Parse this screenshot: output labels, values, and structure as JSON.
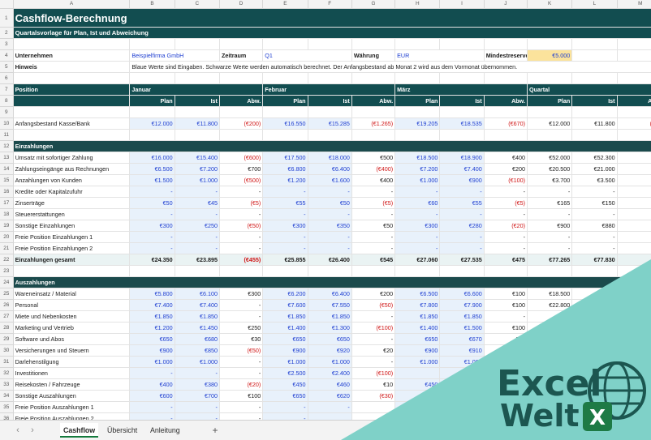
{
  "columns": [
    "A",
    "B",
    "C",
    "D",
    "E",
    "F",
    "G",
    "H",
    "I",
    "J",
    "K",
    "L",
    "M"
  ],
  "title": "Cashflow-Berechnung",
  "subtitle": "Quartalsvorlage für Plan, Ist und Abweichung",
  "info": {
    "company_label": "Unternehmen",
    "company_value": "Beispielfirma GmbH",
    "period_label": "Zeitraum",
    "period_value": "Q1",
    "currency_label": "Währung",
    "currency_value": "EUR",
    "reserve_label": "Mindestreserve",
    "reserve_value": "€5.000",
    "hint_label": "Hinweis",
    "hint_text": "Blaue Werte sind Eingaben. Schwarze Werte werden automatisch berechnet. Der Anfangsbestand ab Monat 2 wird aus dem Vormonat übernommen."
  },
  "header": {
    "position": "Position",
    "months": [
      "Januar",
      "Februar",
      "März",
      "Quartal"
    ],
    "sub": [
      "Plan",
      "Ist",
      "Abw."
    ]
  },
  "opening": {
    "label": "Anfangsbestand Kasse/Bank",
    "v": [
      "€12.000",
      "€11.800",
      "(€200)",
      "€16.550",
      "€15.285",
      "(€1.265)",
      "€19.205",
      "€18.535",
      "(€670)",
      "€12.000",
      "€11.800",
      "(€20"
    ]
  },
  "income_title": "Einzahlungen",
  "income": [
    {
      "label": "Umsatz mit sofortiger Zahlung",
      "v": [
        "€16.000",
        "€15.400",
        "(€600)",
        "€17.500",
        "€18.000",
        "€500",
        "€18.500",
        "€18.900",
        "€400",
        "€52.000",
        "€52.300",
        "€3"
      ]
    },
    {
      "label": "Zahlungseingänge aus Rechnungen",
      "v": [
        "€6.500",
        "€7.200",
        "€700",
        "€6.800",
        "€6.400",
        "(€400)",
        "€7.200",
        "€7.400",
        "€200",
        "€20.500",
        "€21.000",
        "€5"
      ]
    },
    {
      "label": "Anzahlungen von Kunden",
      "v": [
        "€1.500",
        "€1.000",
        "(€500)",
        "€1.200",
        "€1.600",
        "€400",
        "€1.000",
        "€900",
        "(€100)",
        "€3.700",
        "€3.500",
        "(€2"
      ]
    },
    {
      "label": "Kredite oder Kapitalzufuhr",
      "v": [
        "-",
        "-",
        "-",
        "-",
        "-",
        "-",
        "-",
        "-",
        "-",
        "-",
        "-",
        "-"
      ]
    },
    {
      "label": "Zinserträge",
      "v": [
        "€50",
        "€45",
        "(€5)",
        "€55",
        "€50",
        "(€5)",
        "€60",
        "€55",
        "(€5)",
        "€165",
        "€150",
        "(€1"
      ]
    },
    {
      "label": "Steuererstattungen",
      "v": [
        "-",
        "-",
        "-",
        "-",
        "-",
        "-",
        "-",
        "-",
        "-",
        "-",
        "-",
        "-"
      ]
    },
    {
      "label": "Sonstige Einzahlungen",
      "v": [
        "€300",
        "€250",
        "(€50)",
        "€300",
        "€350",
        "€50",
        "€300",
        "€280",
        "(€20)",
        "€900",
        "€880",
        "(€"
      ]
    },
    {
      "label": "Freie Position Einzahlungen 1",
      "v": [
        "-",
        "-",
        "-",
        "-",
        "-",
        "-",
        "-",
        "-",
        "-",
        "-",
        "-",
        "-"
      ]
    },
    {
      "label": "Freie Position Einzahlungen 2",
      "v": [
        "-",
        "-",
        "-",
        "-",
        "-",
        "-",
        "-",
        "-",
        "-",
        "-",
        "-",
        "-"
      ]
    }
  ],
  "income_total": {
    "label": "Einzahlungen gesamt",
    "v": [
      "€24.350",
      "€23.895",
      "(€455)",
      "€25.855",
      "€26.400",
      "€545",
      "€27.060",
      "€27.535",
      "€475",
      "€77.265",
      "€77.830",
      ""
    ]
  },
  "expense_title": "Auszahlungen",
  "expenses": [
    {
      "label": "Wareneinsatz / Material",
      "v": [
        "€5.800",
        "€6.100",
        "€300",
        "€6.200",
        "€6.400",
        "€200",
        "€6.500",
        "€6.600",
        "€100",
        "€18.500",
        "",
        ""
      ]
    },
    {
      "label": "Personal",
      "v": [
        "€7.400",
        "€7.400",
        "-",
        "€7.600",
        "€7.550",
        "(€50)",
        "€7.800",
        "€7.900",
        "€100",
        "€22.800",
        "",
        ""
      ]
    },
    {
      "label": "Miete und Nebenkosten",
      "v": [
        "€1.850",
        "€1.850",
        "-",
        "€1.850",
        "€1.850",
        "-",
        "€1.850",
        "€1.850",
        "-",
        "€5.5",
        "",
        ""
      ]
    },
    {
      "label": "Marketing und Vertrieb",
      "v": [
        "€1.200",
        "€1.450",
        "€250",
        "€1.400",
        "€1.300",
        "(€100)",
        "€1.400",
        "€1.500",
        "€100",
        "",
        "",
        ""
      ]
    },
    {
      "label": "Software und Abos",
      "v": [
        "€650",
        "€680",
        "€30",
        "€650",
        "€650",
        "-",
        "€650",
        "€670",
        "€20",
        "",
        "",
        ""
      ]
    },
    {
      "label": "Versicherungen und Steuern",
      "v": [
        "€900",
        "€850",
        "(€50)",
        "€900",
        "€920",
        "€20",
        "€900",
        "€910",
        "",
        "",
        "",
        ""
      ]
    },
    {
      "label": "Darlehenstilgung",
      "v": [
        "€1.000",
        "€1.000",
        "-",
        "€1.000",
        "€1.000",
        "-",
        "€1.000",
        "€1.000",
        "",
        "",
        "",
        ""
      ]
    },
    {
      "label": "Investitionen",
      "v": [
        "-",
        "-",
        "-",
        "€2.500",
        "€2.400",
        "(€100)",
        "",
        "",
        "",
        "",
        "",
        ""
      ]
    },
    {
      "label": "Reisekosten / Fahrzeuge",
      "v": [
        "€400",
        "€380",
        "(€20)",
        "€450",
        "€460",
        "€10",
        "€450",
        "",
        "",
        "",
        "",
        ""
      ]
    },
    {
      "label": "Sonstige Auszahlungen",
      "v": [
        "€600",
        "€700",
        "€100",
        "€650",
        "€620",
        "(€30)",
        "",
        "",
        "",
        "",
        "",
        ""
      ]
    },
    {
      "label": "Freie Position Auszahlungen 1",
      "v": [
        "-",
        "-",
        "-",
        "-",
        "-",
        "",
        "",
        "",
        "",
        "",
        "",
        ""
      ]
    },
    {
      "label": "Freie Position Auszahlungen 2",
      "v": [
        "-",
        "-",
        "-",
        "-",
        "",
        "",
        "",
        "",
        "",
        "",
        "",
        ""
      ]
    }
  ],
  "tabs": [
    "Cashflow",
    "Übersicht",
    "Anleitung"
  ],
  "brand": {
    "line1": "Excel",
    "line2": "Welt",
    "badge": "X",
    "teal": "#7fd1c8",
    "dark": "#1c5650",
    "green": "#1e7a45"
  }
}
